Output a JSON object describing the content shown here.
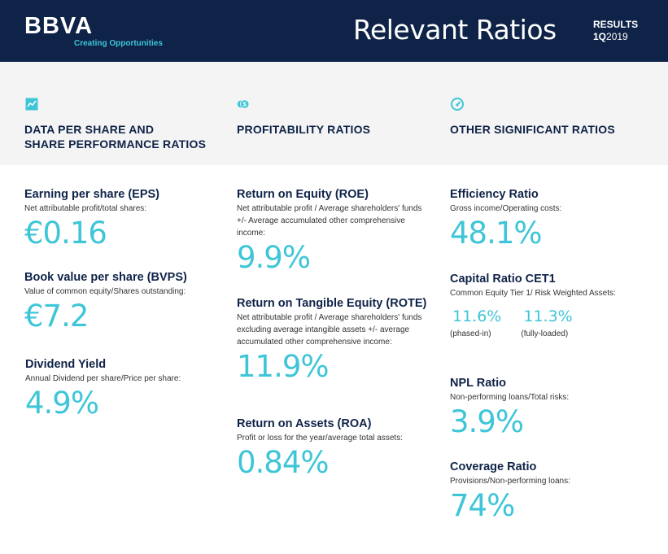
{
  "header": {
    "logo": "BBVA",
    "tagline": "Creating Opportunities",
    "title": "Relevant Ratios",
    "results_label": "RESULTS",
    "period": "1Q",
    "year": "2019"
  },
  "columns": [
    {
      "icon": "line-chart-icon",
      "heading_line1": "DATA PER SHARE AND",
      "heading_line2": "SHARE PERFORMANCE RATIOS"
    },
    {
      "icon": "coins-dollar-icon",
      "heading_line1": "PROFITABILITY RATIOS"
    },
    {
      "icon": "gauge-icon",
      "heading_line1": "OTHER SIGNIFICANT RATIOS"
    }
  ],
  "metrics": {
    "eps": {
      "title": "Earning per share (EPS)",
      "desc": "Net attributable profit/total shares:",
      "value": "€0.16"
    },
    "bvps": {
      "title": "Book value per share (BVPS)",
      "desc": "Value of common equity/Shares outstanding:",
      "value": "€7.2"
    },
    "dividend": {
      "title": "Dividend Yield",
      "desc": "Annual Dividend per share/Price per share:",
      "value": "4.9%"
    },
    "roe": {
      "title": "Return on Equity (ROE)",
      "desc": "Net attributable profit / Average shareholders' funds +/- Average accumulated other comprehensive income:",
      "value": "9.9%"
    },
    "rote": {
      "title": "Return on Tangible Equity (ROTE)",
      "desc": "Net attributable profit / Average shareholders' funds excluding average intangible assets +/- average accumulated other comprehensive income:",
      "value": "11.9%"
    },
    "roa": {
      "title": "Return on Assets (ROA)",
      "desc": "Profit or loss for the year/average total assets:",
      "value": "0.84%"
    },
    "efficiency": {
      "title": "Efficiency Ratio",
      "desc": "Gross income/Operating costs:",
      "value": "48.1%"
    },
    "cet1": {
      "title": "Capital Ratio CET1",
      "desc": "Common Equity Tier 1/ Risk Weighted Assets:",
      "phased_in_value": "11.6%",
      "phased_in_label": "(phased-in)",
      "fully_loaded_value": "11.3%",
      "fully_loaded_label": "(fully-loaded)"
    },
    "npl": {
      "title": "NPL Ratio",
      "desc": "Non-performing loans/Total risks:",
      "value": "3.9%"
    },
    "coverage": {
      "title": "Coverage Ratio",
      "desc": "Provisions/Non-performing loans:",
      "value": "74%"
    }
  },
  "colors": {
    "navy": "#0f2348",
    "accent": "#3ec6d8",
    "band": "#f4f4f4"
  }
}
